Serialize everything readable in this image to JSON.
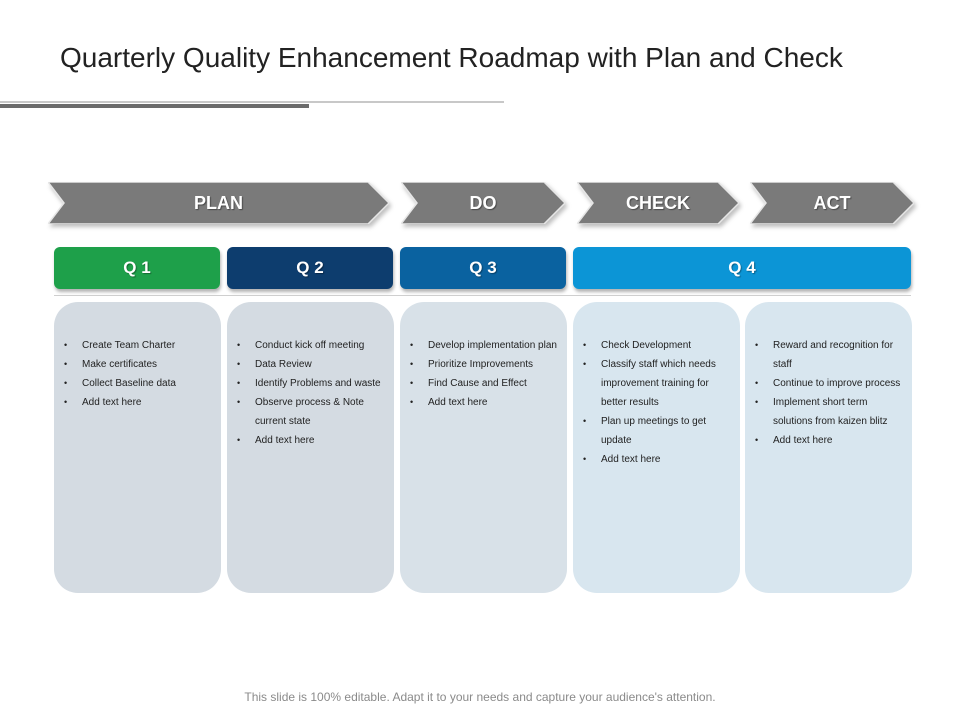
{
  "title": "Quarterly Quality Enhancement Roadmap with Plan and Check",
  "phases": [
    {
      "label": "PLAN"
    },
    {
      "label": "DO"
    },
    {
      "label": "CHECK"
    },
    {
      "label": "ACT"
    }
  ],
  "quarters": [
    {
      "label": "Q 1",
      "color": "#1ea04a"
    },
    {
      "label": "Q 2",
      "color": "#0d3d6e"
    },
    {
      "label": "Q 3",
      "color": "#0a62a0"
    },
    {
      "label": "Q 4",
      "color": "#0c95d6"
    }
  ],
  "cards": [
    {
      "items": [
        "Create Team Charter",
        "Make certificates",
        "Collect Baseline data",
        "Add text here"
      ]
    },
    {
      "items": [
        "Conduct kick off meeting",
        "Data Review",
        "Identify Problems and waste",
        "Observe process & Note current state",
        "Add text here"
      ]
    },
    {
      "items": [
        "Develop implementation plan",
        "Prioritize Improvements",
        "Find Cause and Effect",
        "Add text here"
      ]
    },
    {
      "items": [
        "Check Development",
        "Classify staff which needs improvement training for better results",
        "Plan up meetings to get update",
        "Add text here"
      ]
    },
    {
      "items": [
        "Reward and recognition for staff",
        "Continue to improve process",
        "Implement short term solutions from kaizen blitz",
        "Add text here"
      ]
    }
  ],
  "colors": {
    "phase_fill": "#7a7a7a",
    "card_gray": "#d4dbe2",
    "card_blue": "#d8e6ef"
  },
  "footer": "This slide is 100% editable. Adapt it to your needs and capture your audience's attention."
}
